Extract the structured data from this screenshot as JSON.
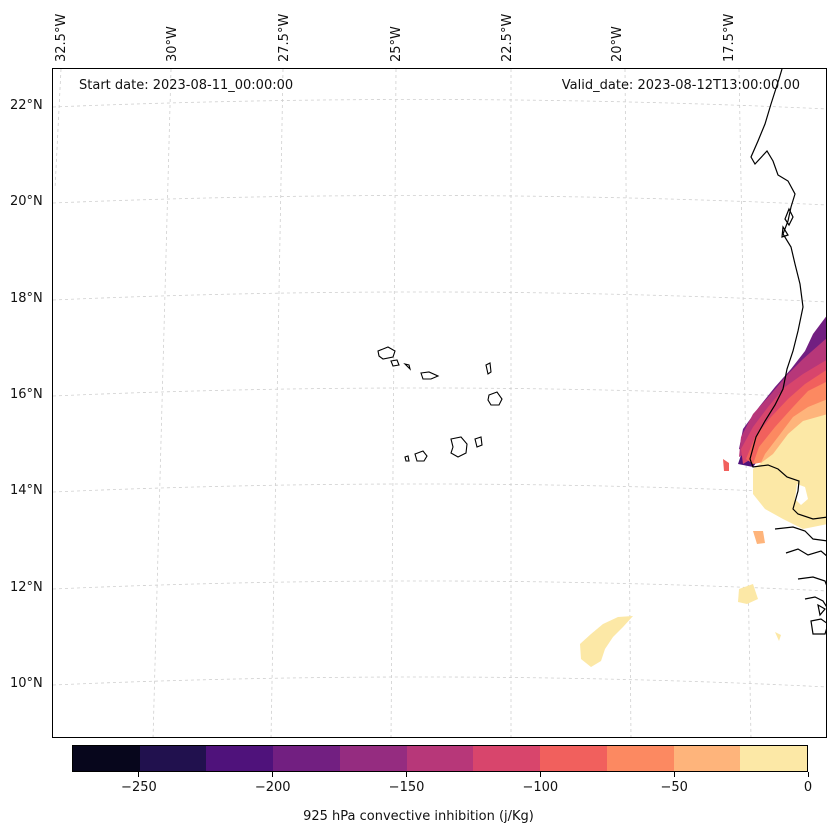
{
  "map": {
    "start_date": "Start date: 2023-08-11_00:00:00",
    "valid_date": "Valid_date: 2023-08-12T13:00:00.00",
    "lon_labels": [
      "32.5°W",
      "30°W",
      "27.5°W",
      "25°W",
      "22.5°W",
      "20°W",
      "17.5°W"
    ],
    "lat_labels": [
      "22°N",
      "20°N",
      "18°N",
      "16°N",
      "14°N",
      "12°N",
      "10°N"
    ],
    "grid": true,
    "projection": "conic"
  },
  "colorbar": {
    "label": "925 hPa convective inhibition (j/Kg)",
    "ticks": [
      "−250",
      "−200",
      "−150",
      "−100",
      "−50",
      "0"
    ],
    "colors": [
      "#07061c",
      "#21114e",
      "#4f127b",
      "#721f81",
      "#952c80",
      "#b73779",
      "#d8456c",
      "#f1605d",
      "#fc8961",
      "#feb47b",
      "#fce8a6"
    ],
    "range": [
      -275,
      0
    ]
  }
}
